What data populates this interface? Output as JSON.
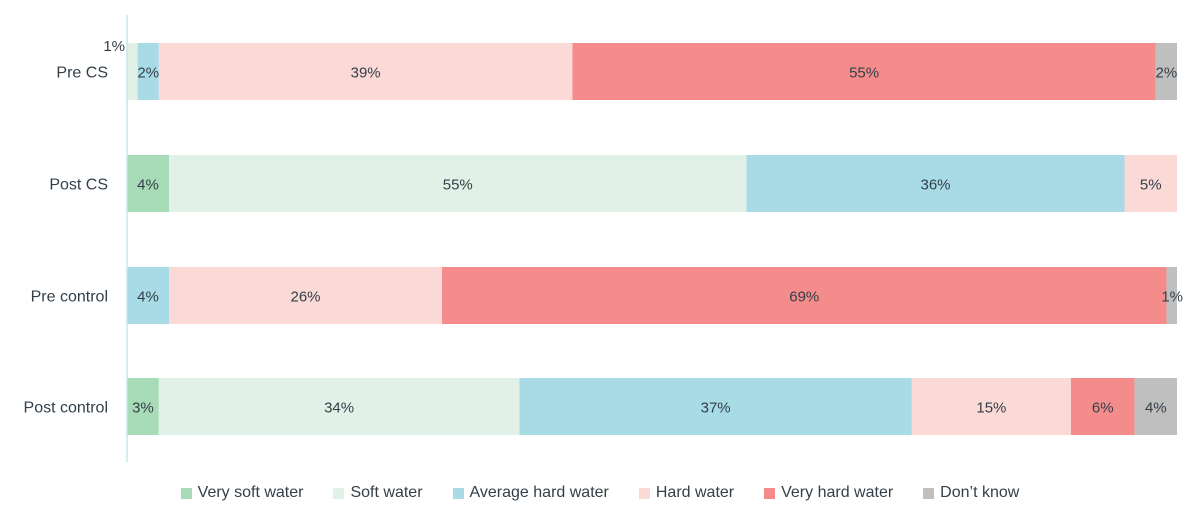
{
  "chart_data": {
    "type": "bar",
    "orientation": "horizontal",
    "stacked": "percent",
    "categories": [
      "Pre CS",
      "Post CS",
      "Pre control",
      "Post control"
    ],
    "series": [
      {
        "name": "Very soft water",
        "color": "#a8dbb8",
        "values": [
          0,
          4,
          0,
          3
        ]
      },
      {
        "name": "Soft water",
        "color": "#e2f1e8",
        "values": [
          1,
          55,
          0,
          34
        ]
      },
      {
        "name": "Average hard water",
        "color": "#a8dbe6",
        "values": [
          2,
          36,
          4,
          37
        ]
      },
      {
        "name": "Hard water",
        "color": "#fbd9d7",
        "values": [
          39,
          5,
          26,
          15
        ]
      },
      {
        "name": "Very hard water",
        "color": "#f48c8c",
        "values": [
          55,
          0,
          69,
          6
        ]
      },
      {
        "name": "Don’t know",
        "color": "#bfbfbf",
        "values": [
          2,
          0,
          1,
          4
        ]
      }
    ],
    "value_suffix": "%",
    "legend_position": "bottom",
    "grid": false
  }
}
